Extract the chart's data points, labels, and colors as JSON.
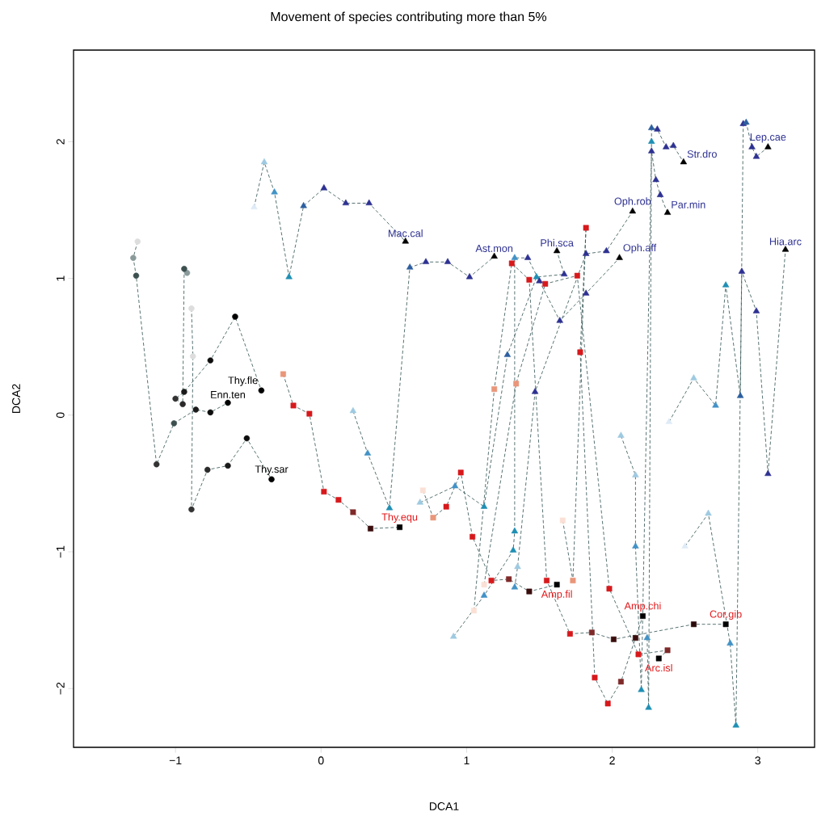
{
  "chart_data": {
    "type": "line",
    "title": "Movement of species contributing more than 5%",
    "xlabel": "DCA1",
    "ylabel": "DCA2",
    "xlim": [
      -1.7,
      3.39
    ],
    "ylim": [
      -2.43,
      2.67
    ],
    "xticks": [
      {
        "value": -1,
        "label": "−1"
      },
      0,
      1,
      2,
      3
    ],
    "yticks": [
      {
        "value": -2,
        "label": "−2"
      },
      {
        "value": -1,
        "label": "−1"
      },
      0,
      1,
      2
    ],
    "line_style": "dashed",
    "series": [
      {
        "name": "Thy.sar",
        "marker": "circle",
        "color": "#2f4f4f",
        "x": [
          -0.89,
          -0.88,
          -0.89,
          -0.78,
          -0.64,
          -0.51,
          -0.34
        ],
        "values": [
          0.78,
          0.43,
          -0.69,
          -0.4,
          -0.37,
          -0.17,
          -0.47
        ],
        "colors": [
          "#dddddd",
          "#dddddd",
          "#333333",
          "#2a2a2a",
          "#1a1a1a",
          "#0d0d0d",
          "#000000"
        ]
      },
      {
        "name": "Enn.ten",
        "marker": "circle",
        "color": "#2f4f4f",
        "x": [
          -1.26,
          -1.29,
          -1.27,
          -1.13,
          -1.01,
          -0.86,
          -0.76,
          -0.64
        ],
        "values": [
          1.27,
          1.15,
          1.02,
          -0.36,
          -0.06,
          0.04,
          0.02,
          0.09
        ],
        "colors": [
          "#dddddd",
          "#8a9a9a",
          "#3d5050",
          "#333333",
          "#3d5050",
          "#1a1a1a",
          "#0d0d0d",
          "#000000"
        ]
      },
      {
        "name": "Thy.fle",
        "marker": "circle",
        "color": "#2f4f4f",
        "x": [
          -0.92,
          -0.94,
          -0.95,
          -1.0,
          -0.94,
          -0.76,
          -0.59,
          -0.41
        ],
        "values": [
          1.04,
          1.07,
          0.08,
          0.12,
          0.17,
          0.4,
          0.72,
          0.18
        ],
        "colors": [
          "#8a9a9a",
          "#3d5050",
          "#2a2a2a",
          "#333333",
          "#1a1a1a",
          "#0d0d0d",
          "#000000",
          "#000000"
        ]
      },
      {
        "name": "Thy.equ",
        "marker": "square",
        "color": "#2f4f4f",
        "x": [
          -0.26,
          -0.19,
          -0.08,
          0.02,
          0.12,
          0.22,
          0.34,
          0.54
        ],
        "values": [
          0.3,
          0.07,
          0.01,
          -0.56,
          -0.62,
          -0.71,
          -0.83,
          -0.82
        ],
        "colors": [
          "#e9967a",
          "#d7191c",
          "#d7191c",
          "#d7191c",
          "#d7191c",
          "#7f2a2a",
          "#3a0d0d",
          "#000000"
        ]
      },
      {
        "name": "Amp.fil",
        "marker": "square",
        "color": "#2f4f4f",
        "x": [
          0.7,
          0.77,
          0.86,
          0.96,
          1.04,
          1.17,
          1.29,
          1.43,
          1.62
        ],
        "values": [
          -0.55,
          -0.75,
          -0.67,
          -0.42,
          -0.89,
          -1.21,
          -1.2,
          -1.29,
          -1.24
        ],
        "colors": [
          "#fbe0d6",
          "#e9967a",
          "#d7191c",
          "#d7191c",
          "#d7191c",
          "#d7191c",
          "#7f2a2a",
          "#3a0d0d",
          "#000000"
        ]
      },
      {
        "name": "Cor.gib",
        "marker": "square",
        "color": "#2f4f4f",
        "x": [
          1.05,
          1.19,
          1.31,
          1.43,
          1.55,
          1.71,
          1.86,
          2.01,
          2.56,
          2.78
        ],
        "values": [
          -1.43,
          0.19,
          1.11,
          0.99,
          -1.21,
          -1.6,
          -1.59,
          -1.64,
          -1.53,
          -1.53
        ],
        "colors": [
          "#fbe0d6",
          "#e9967a",
          "#d7191c",
          "#d7191c",
          "#d7191c",
          "#d7191c",
          "#7f2a2a",
          "#3a0d0d",
          "#2a0a0a",
          "#000000"
        ]
      },
      {
        "name": "Amp.chi",
        "marker": "square",
        "color": "#2f4f4f",
        "x": [
          1.66,
          1.73,
          1.82,
          1.78,
          1.88,
          1.97,
          2.06,
          2.16,
          2.21
        ],
        "values": [
          -0.77,
          -1.21,
          1.37,
          0.46,
          -1.92,
          -2.11,
          -1.95,
          -1.63,
          -1.47
        ],
        "colors": [
          "#fbe0d6",
          "#e9967a",
          "#d7191c",
          "#d7191c",
          "#d7191c",
          "#d7191c",
          "#7f2a2a",
          "#3a0d0d",
          "#000000"
        ]
      },
      {
        "name": "Arc.isl",
        "marker": "square",
        "color": "#2f4f4f",
        "x": [
          1.12,
          1.34,
          1.54,
          1.76,
          1.98,
          2.18,
          2.38,
          2.32
        ],
        "values": [
          -1.24,
          0.23,
          0.96,
          1.02,
          -1.27,
          -1.75,
          -1.72,
          -1.78
        ],
        "colors": [
          "#fbe0d6",
          "#e9967a",
          "#d7191c",
          "#d7191c",
          "#d7191c",
          "#d7191c",
          "#7f2a2a",
          "#000000"
        ]
      },
      {
        "name": "Mac.cal",
        "marker": "triangle",
        "color": "#2f4f4f",
        "x": [
          -0.46,
          -0.39,
          -0.32,
          -0.22,
          -0.12,
          0.02,
          0.17,
          0.33,
          0.58
        ],
        "values": [
          1.52,
          1.85,
          1.63,
          1.01,
          1.53,
          1.66,
          1.55,
          1.55,
          1.27
        ],
        "colors": [
          "#deebf7",
          "#9ecae1",
          "#4292c6",
          "#1f8fb4",
          "#2c5fa0",
          "#2e3192",
          "#2e3192",
          "#2e3192",
          "#000000"
        ]
      },
      {
        "name": "Ast.mon",
        "marker": "triangle",
        "color": "#2f4f4f",
        "x": [
          0.22,
          0.32,
          0.47,
          0.61,
          0.72,
          0.87,
          1.02,
          1.19
        ],
        "values": [
          0.03,
          -0.28,
          -0.68,
          1.08,
          1.12,
          1.12,
          1.01,
          1.16
        ],
        "colors": [
          "#9ecae1",
          "#4292c6",
          "#1f8fb4",
          "#2c5fa0",
          "#2e3192",
          "#2e3192",
          "#2e3192",
          "#000000"
        ]
      },
      {
        "name": "Phi.sca",
        "marker": "triangle",
        "color": "#2f4f4f",
        "x": [
          0.68,
          0.92,
          1.12,
          1.28,
          1.48,
          1.67,
          1.62
        ],
        "values": [
          -0.64,
          -0.52,
          -0.67,
          0.44,
          1.01,
          1.03,
          1.2
        ],
        "colors": [
          "#9ecae1",
          "#4292c6",
          "#1f8fb4",
          "#2c5fa0",
          "#1f8fb4",
          "#2e3192",
          "#000000"
        ]
      },
      {
        "name": "Oph.aff",
        "marker": "triangle",
        "color": "#2f4f4f",
        "x": [
          0.91,
          1.12,
          1.32,
          1.33,
          1.33,
          1.42,
          1.5,
          1.64,
          1.82,
          2.05
        ],
        "values": [
          -1.62,
          -1.32,
          -0.99,
          -0.85,
          1.15,
          1.15,
          0.98,
          0.69,
          0.89,
          1.15
        ],
        "colors": [
          "#9ecae1",
          "#4292c6",
          "#1f8fb4",
          "#1f8fb4",
          "#4292c6",
          "#2e3192",
          "#2e3192",
          "#2e3192",
          "#2e3192",
          "#000000"
        ]
      },
      {
        "name": "Oph.rob",
        "marker": "triangle",
        "color": "#2f4f4f",
        "x": [
          1.33,
          1.35,
          1.47,
          1.82,
          1.96,
          2.14
        ],
        "values": [
          -1.26,
          -1.11,
          0.17,
          1.18,
          1.2,
          1.49
        ],
        "colors": [
          "#4292c6",
          "#9ecae1",
          "#2e3192",
          "#2e3192",
          "#2e3192",
          "#000000"
        ]
      },
      {
        "name": "Par.min",
        "marker": "triangle",
        "color": "#2f4f4f",
        "x": [
          2.06,
          2.16,
          2.16,
          2.2,
          2.27,
          2.3,
          2.33,
          2.38
        ],
        "values": [
          -0.15,
          -0.44,
          -0.96,
          -2.01,
          1.93,
          1.72,
          1.61,
          1.48
        ],
        "colors": [
          "#9ecae1",
          "#9ecae1",
          "#4292c6",
          "#1f8fb4",
          "#2e3192",
          "#2e3192",
          "#2e3192",
          "#000000"
        ]
      },
      {
        "name": "Str.dro",
        "marker": "triangle",
        "color": "#2f4f4f",
        "x": [
          2.24,
          2.25,
          2.27,
          2.27,
          2.31,
          2.37,
          2.42,
          2.49
        ],
        "values": [
          -1.63,
          -2.14,
          2.0,
          2.1,
          2.09,
          1.96,
          1.97,
          1.85
        ],
        "colors": [
          "#4292c6",
          "#1f8fb4",
          "#1f8fb4",
          "#2c5fa0",
          "#2e3192",
          "#2e3192",
          "#2e3192",
          "#000000"
        ]
      },
      {
        "name": "Lep.cae",
        "marker": "triangle",
        "color": "#2f4f4f",
        "x": [
          2.39,
          2.56,
          2.71,
          2.78,
          2.88,
          2.9,
          2.92,
          2.96,
          2.99,
          3.07
        ],
        "values": [
          -0.05,
          0.27,
          0.07,
          0.95,
          0.14,
          2.13,
          2.14,
          1.96,
          1.89,
          1.96
        ],
        "colors": [
          "#deebf7",
          "#9ecae1",
          "#4292c6",
          "#1f8fb4",
          "#2c5fa0",
          "#2e3192",
          "#2c5fa0",
          "#2e3192",
          "#2e3192",
          "#000000"
        ]
      },
      {
        "name": "Hia.arc",
        "marker": "triangle",
        "color": "#2f4f4f",
        "x": [
          2.5,
          2.66,
          2.81,
          2.85,
          2.89,
          2.99,
          3.07,
          3.19
        ],
        "values": [
          -0.96,
          -0.72,
          -1.67,
          -2.27,
          1.05,
          0.76,
          -0.43,
          1.21
        ],
        "colors": [
          "#deebf7",
          "#9ecae1",
          "#4292c6",
          "#1f8fb4",
          "#2e3192",
          "#2e3192",
          "#2e3192",
          "#000000"
        ]
      }
    ]
  }
}
